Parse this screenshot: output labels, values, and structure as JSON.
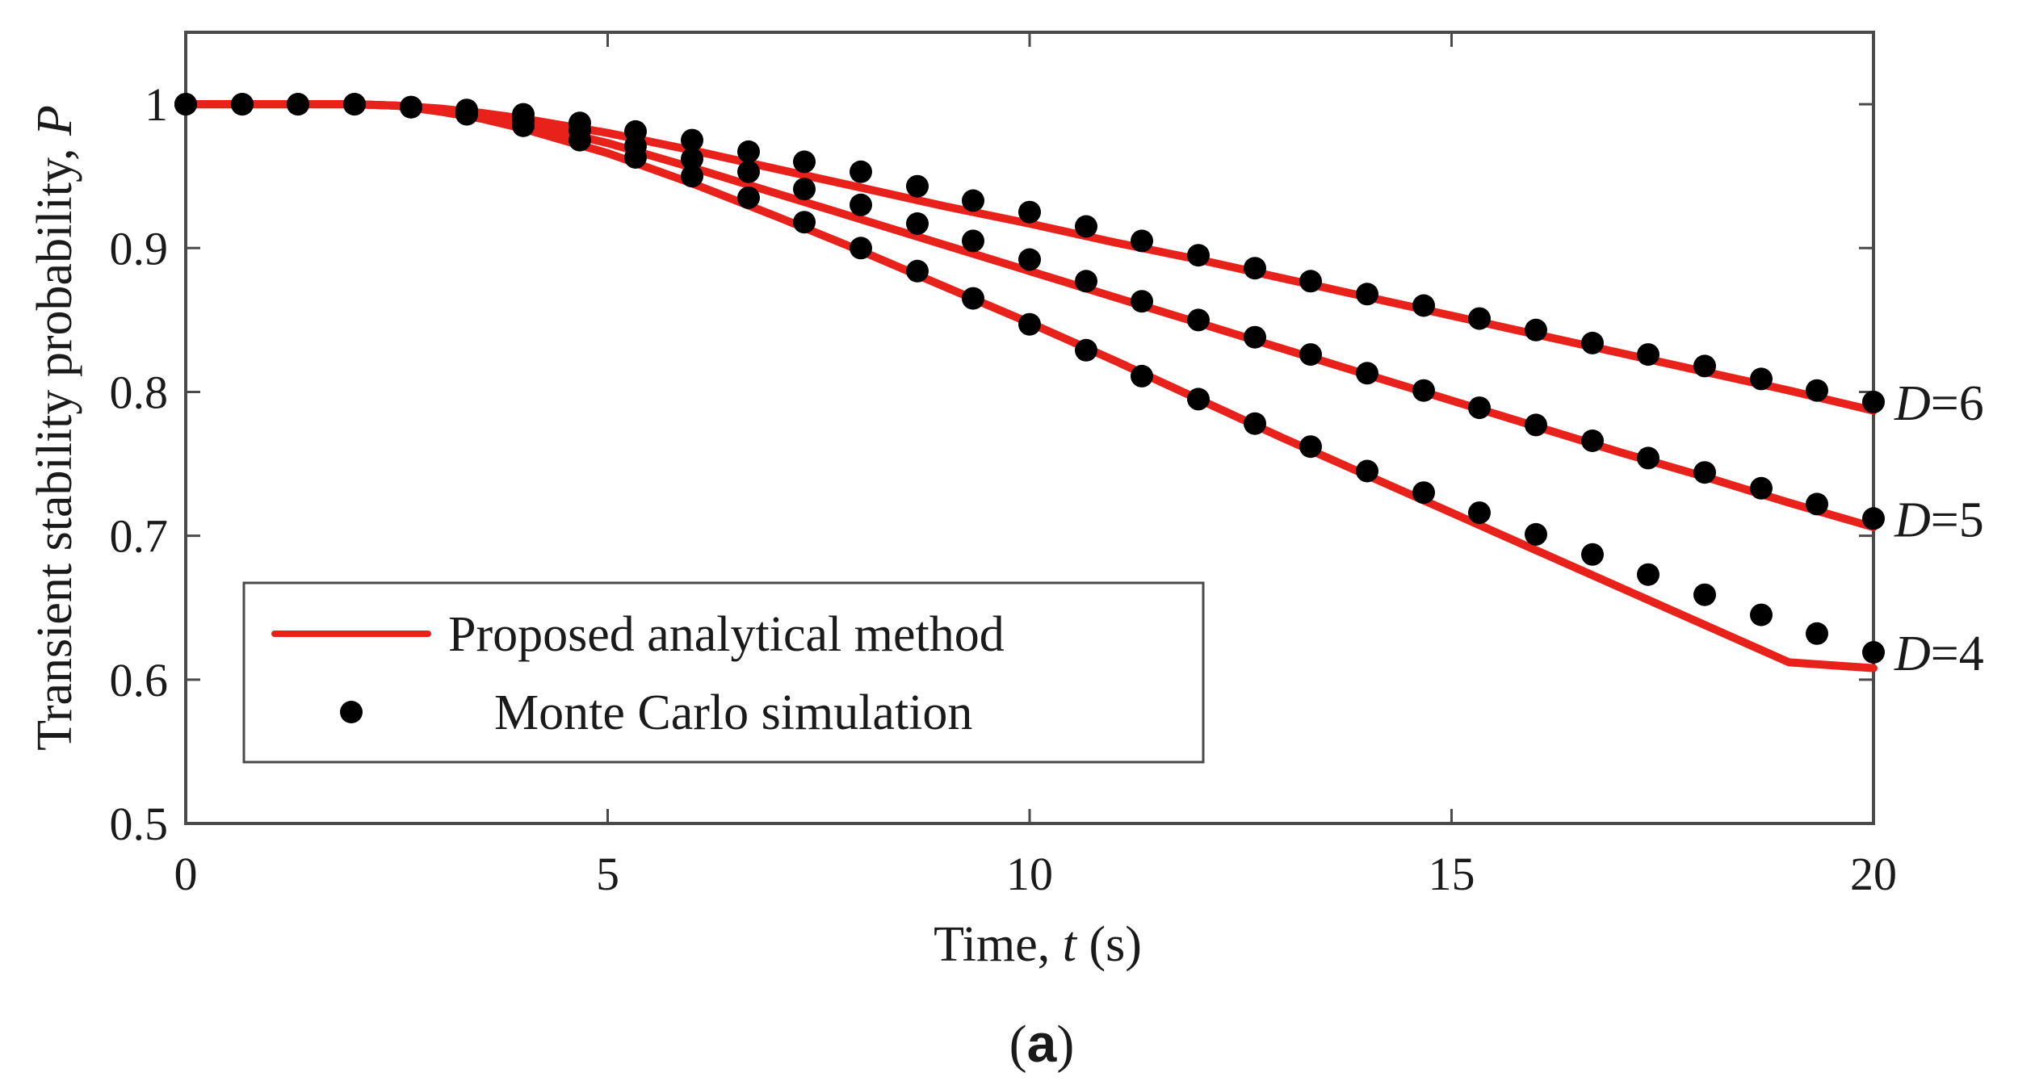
{
  "chart_data": {
    "type": "line",
    "title": "",
    "xlabel_main": "Time, ",
    "xlabel_var": "t",
    "xlabel_unit": " (s)",
    "ylabel_main": "Transient stability probability, ",
    "ylabel_var": "P",
    "xlim": [
      0,
      20
    ],
    "ylim": [
      0.5,
      1.05
    ],
    "xticks": [
      0,
      5,
      10,
      15,
      20
    ],
    "xtick_labels": [
      "0",
      "5",
      "10",
      "15",
      "20"
    ],
    "yticks": [
      0.5,
      0.6,
      0.7,
      0.8,
      0.9,
      1.0
    ],
    "ytick_labels": [
      "0.5",
      "0.6",
      "0.7",
      "0.8",
      "0.9",
      "1"
    ],
    "grid": false,
    "legend": {
      "position": "bottom-left",
      "entries": [
        {
          "label": "Proposed analytical method",
          "style": "line"
        },
        {
          "label": "Monte Carlo simulation",
          "style": "marker"
        }
      ]
    },
    "colors": {
      "analytical": "#e8211b",
      "monte_carlo": "#000000"
    },
    "series": [
      {
        "name": "D=6",
        "label_var": "D",
        "label_val": "=6",
        "analytical": {
          "x": [
            0,
            1,
            2,
            2.5,
            3,
            3.5,
            4,
            5,
            6,
            7,
            8,
            9,
            10,
            11,
            12,
            13,
            14,
            15,
            16,
            17,
            18,
            19,
            20
          ],
          "y": [
            1.0,
            1.0,
            1.0,
            0.999,
            0.997,
            0.994,
            0.99,
            0.98,
            0.968,
            0.955,
            0.942,
            0.929,
            0.917,
            0.904,
            0.892,
            0.879,
            0.866,
            0.853,
            0.84,
            0.827,
            0.814,
            0.801,
            0.787
          ]
        },
        "monte_carlo": {
          "x": [
            0,
            0.67,
            1.33,
            2,
            2.67,
            3.33,
            4,
            4.67,
            5.33,
            6,
            6.67,
            7.33,
            8,
            8.67,
            9.33,
            10,
            10.67,
            11.33,
            12,
            12.67,
            13.33,
            14,
            14.67,
            15.33,
            16,
            16.67,
            17.33,
            18,
            18.67,
            19.33,
            20
          ],
          "y": [
            1.0,
            1.0,
            1.0,
            1.0,
            0.998,
            0.996,
            0.993,
            0.987,
            0.981,
            0.975,
            0.967,
            0.96,
            0.953,
            0.943,
            0.933,
            0.925,
            0.915,
            0.905,
            0.895,
            0.886,
            0.877,
            0.868,
            0.86,
            0.851,
            0.843,
            0.834,
            0.826,
            0.818,
            0.809,
            0.801,
            0.793
          ]
        }
      },
      {
        "name": "D=5",
        "label_var": "D",
        "label_val": "=5",
        "analytical": {
          "x": [
            0,
            1,
            2,
            2.5,
            3,
            3.5,
            4,
            5,
            6,
            7,
            8,
            9,
            10,
            11,
            12,
            13,
            14,
            15,
            16,
            17,
            18,
            19,
            20
          ],
          "y": [
            1.0,
            1.0,
            1.0,
            0.999,
            0.996,
            0.992,
            0.987,
            0.973,
            0.956,
            0.938,
            0.92,
            0.902,
            0.884,
            0.866,
            0.848,
            0.83,
            0.812,
            0.794,
            0.776,
            0.758,
            0.741,
            0.723,
            0.706
          ]
        },
        "monte_carlo": {
          "x": [
            0,
            0.67,
            1.33,
            2,
            2.67,
            3.33,
            4,
            4.67,
            5.33,
            6,
            6.67,
            7.33,
            8,
            8.67,
            9.33,
            10,
            10.67,
            11.33,
            12,
            12.67,
            13.33,
            14,
            14.67,
            15.33,
            16,
            16.67,
            17.33,
            18,
            18.67,
            19.33,
            20
          ],
          "y": [
            1.0,
            1.0,
            1.0,
            1.0,
            0.998,
            0.994,
            0.989,
            0.982,
            0.971,
            0.962,
            0.953,
            0.941,
            0.93,
            0.917,
            0.905,
            0.892,
            0.877,
            0.863,
            0.85,
            0.838,
            0.826,
            0.813,
            0.801,
            0.789,
            0.777,
            0.766,
            0.754,
            0.744,
            0.733,
            0.722,
            0.712
          ]
        }
      },
      {
        "name": "D=4",
        "label_var": "D",
        "label_val": "=4",
        "analytical": {
          "x": [
            0,
            1,
            2,
            2.5,
            3,
            3.5,
            4,
            5,
            6,
            7,
            8,
            9,
            10,
            11,
            12,
            13,
            14,
            15,
            16,
            17,
            18,
            19,
            20
          ],
          "y": [
            1.0,
            1.0,
            1.0,
            0.999,
            0.995,
            0.99,
            0.983,
            0.966,
            0.945,
            0.922,
            0.898,
            0.873,
            0.848,
            0.822,
            0.795,
            0.768,
            0.742,
            0.716,
            0.69,
            0.664,
            0.638,
            0.612,
            0.608
          ]
        },
        "monte_carlo": {
          "x": [
            0,
            0.67,
            1.33,
            2,
            2.67,
            3.33,
            4,
            4.67,
            5.33,
            6,
            6.67,
            7.33,
            8,
            8.67,
            9.33,
            10,
            10.67,
            11.33,
            12,
            12.67,
            13.33,
            14,
            14.67,
            15.33,
            16,
            16.67,
            17.33,
            18,
            18.67,
            19.33,
            20
          ],
          "y": [
            1.0,
            1.0,
            1.0,
            1.0,
            0.998,
            0.993,
            0.985,
            0.975,
            0.963,
            0.95,
            0.935,
            0.918,
            0.9,
            0.884,
            0.865,
            0.847,
            0.829,
            0.811,
            0.795,
            0.778,
            0.762,
            0.745,
            0.73,
            0.716,
            0.701,
            0.687,
            0.673,
            0.659,
            0.645,
            0.632,
            0.619
          ]
        }
      }
    ]
  },
  "caption": {
    "open": "(",
    "letter": "a",
    "close": ")"
  }
}
